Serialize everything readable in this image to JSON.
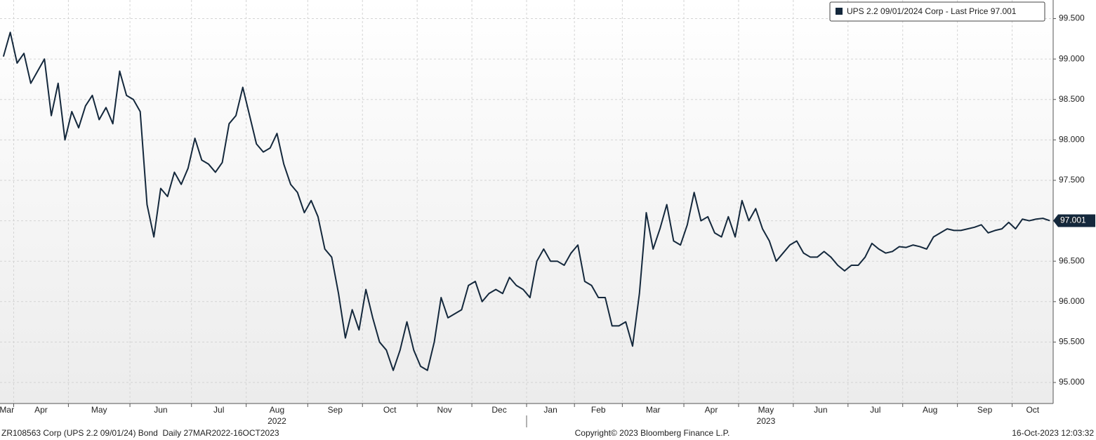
{
  "chart_data": {
    "type": "line",
    "series": [
      {
        "name": "UPS 2.2 09/01/2024 Corp - Last Price 97.001",
        "color": "#14283c",
        "values": [
          99.03,
          99.33,
          98.95,
          99.07,
          98.7,
          98.85,
          99.0,
          98.3,
          98.7,
          98.0,
          98.35,
          98.15,
          98.42,
          98.55,
          98.25,
          98.4,
          98.2,
          98.85,
          98.55,
          98.5,
          98.35,
          97.2,
          96.8,
          97.4,
          97.3,
          97.6,
          97.45,
          97.65,
          98.02,
          97.75,
          97.7,
          97.6,
          97.72,
          98.2,
          98.3,
          98.65,
          98.3,
          97.95,
          97.85,
          97.9,
          98.08,
          97.7,
          97.45,
          97.35,
          97.1,
          97.25,
          97.05,
          96.65,
          96.55,
          96.1,
          95.55,
          95.9,
          95.65,
          96.15,
          95.8,
          95.5,
          95.4,
          95.15,
          95.4,
          95.75,
          95.4,
          95.2,
          95.15,
          95.5,
          96.05,
          95.8,
          95.85,
          95.9,
          96.2,
          96.25,
          96.0,
          96.1,
          96.15,
          96.1,
          96.3,
          96.2,
          96.15,
          96.05,
          96.5,
          96.65,
          96.5,
          96.5,
          96.45,
          96.6,
          96.7,
          96.25,
          96.2,
          96.05,
          96.05,
          95.7,
          95.7,
          95.75,
          95.45,
          96.1,
          97.1,
          96.65,
          96.9,
          97.2,
          96.75,
          96.7,
          96.95,
          97.35,
          97.0,
          97.05,
          96.85,
          96.8,
          97.05,
          96.8,
          97.25,
          97.0,
          97.15,
          96.9,
          96.75,
          96.5,
          96.6,
          96.7,
          96.75,
          96.6,
          96.55,
          96.55,
          96.62,
          96.55,
          96.45,
          96.38,
          96.45,
          96.45,
          96.55,
          96.72,
          96.65,
          96.6,
          96.62,
          96.68,
          96.67,
          96.7,
          96.68,
          96.65,
          96.8,
          96.85,
          96.9,
          96.88,
          96.88,
          96.9,
          96.92,
          96.95,
          96.85,
          96.88,
          96.9,
          96.98,
          96.9,
          97.02,
          97.0,
          97.02,
          97.03,
          97.001
        ]
      }
    ],
    "x": [
      "2022-03",
      "2022-03",
      "2022-04",
      "2022-04",
      "2022-04",
      "2022-04",
      "2022-04",
      "2022-04",
      "2022-04",
      "2022-04",
      "2022-05",
      "2022-05",
      "2022-05",
      "2022-05",
      "2022-05",
      "2022-05",
      "2022-05",
      "2022-05",
      "2022-05",
      "2022-06",
      "2022-06",
      "2022-06",
      "2022-06",
      "2022-06",
      "2022-06",
      "2022-06",
      "2022-06",
      "2022-06",
      "2022-07",
      "2022-07",
      "2022-07",
      "2022-07",
      "2022-07",
      "2022-07",
      "2022-07",
      "2022-07",
      "2022-08",
      "2022-08",
      "2022-08",
      "2022-08",
      "2022-08",
      "2022-08",
      "2022-08",
      "2022-08",
      "2022-08",
      "2022-09",
      "2022-09",
      "2022-09",
      "2022-09",
      "2022-09",
      "2022-09",
      "2022-09",
      "2022-09",
      "2022-10",
      "2022-10",
      "2022-10",
      "2022-10",
      "2022-10",
      "2022-10",
      "2022-10",
      "2022-10",
      "2022-11",
      "2022-11",
      "2022-11",
      "2022-11",
      "2022-11",
      "2022-11",
      "2022-11",
      "2022-11",
      "2022-12",
      "2022-12",
      "2022-12",
      "2022-12",
      "2022-12",
      "2022-12",
      "2022-12",
      "2022-12",
      "2023-01",
      "2023-01",
      "2023-01",
      "2023-01",
      "2023-01",
      "2023-01",
      "2023-01",
      "2023-02",
      "2023-02",
      "2023-02",
      "2023-02",
      "2023-02",
      "2023-02",
      "2023-02",
      "2023-03",
      "2023-03",
      "2023-03",
      "2023-03",
      "2023-03",
      "2023-03",
      "2023-03",
      "2023-03",
      "2023-03",
      "2023-04",
      "2023-04",
      "2023-04",
      "2023-04",
      "2023-04",
      "2023-04",
      "2023-04",
      "2023-04",
      "2023-05",
      "2023-05",
      "2023-05",
      "2023-05",
      "2023-05",
      "2023-05",
      "2023-05",
      "2023-05",
      "2023-06",
      "2023-06",
      "2023-06",
      "2023-06",
      "2023-06",
      "2023-06",
      "2023-06",
      "2023-06",
      "2023-07",
      "2023-07",
      "2023-07",
      "2023-07",
      "2023-07",
      "2023-07",
      "2023-07",
      "2023-07",
      "2023-08",
      "2023-08",
      "2023-08",
      "2023-08",
      "2023-08",
      "2023-08",
      "2023-08",
      "2023-08",
      "2023-09",
      "2023-09",
      "2023-09",
      "2023-09",
      "2023-09",
      "2023-09",
      "2023-09",
      "2023-09",
      "2023-10",
      "2023-10",
      "2023-10",
      "2023-10",
      "2023-10",
      "2023-10"
    ],
    "xticks": [
      {
        "value": "2022-03",
        "label": "Mar"
      },
      {
        "value": "2022-04",
        "label": "Apr"
      },
      {
        "value": "2022-05",
        "label": "May"
      },
      {
        "value": "2022-06",
        "label": "Jun"
      },
      {
        "value": "2022-07",
        "label": "Jul"
      },
      {
        "value": "2022-08",
        "label": "Aug"
      },
      {
        "value": "2022-09",
        "label": "Sep"
      },
      {
        "value": "2022-10",
        "label": "Oct"
      },
      {
        "value": "2022-11",
        "label": "Nov"
      },
      {
        "value": "2022-12",
        "label": "Dec"
      },
      {
        "value": "2023-01",
        "label": "Jan"
      },
      {
        "value": "2023-02",
        "label": "Feb"
      },
      {
        "value": "2023-03",
        "label": "Mar"
      },
      {
        "value": "2023-04",
        "label": "Apr"
      },
      {
        "value": "2023-05",
        "label": "May"
      },
      {
        "value": "2023-06",
        "label": "Jun"
      },
      {
        "value": "2023-07",
        "label": "Jul"
      },
      {
        "value": "2023-08",
        "label": "Aug"
      },
      {
        "value": "2023-09",
        "label": "Sep"
      },
      {
        "value": "2023-10",
        "label": "Oct"
      }
    ],
    "year_ticks": [
      {
        "value": "2022-08",
        "label": "2022"
      },
      {
        "value": "2023-05",
        "label": "2023"
      }
    ],
    "ylim": [
      94.74,
      99.73
    ],
    "yticks": [
      {
        "value": 95,
        "label": "95.000"
      },
      {
        "value": 95.5,
        "label": "95.500"
      },
      {
        "value": 96,
        "label": "96.000"
      },
      {
        "value": 96.5,
        "label": "96.500"
      },
      {
        "value": 97,
        "label": "97.000"
      },
      {
        "value": 97.5,
        "label": "97.500"
      },
      {
        "value": 98,
        "label": "98.000"
      },
      {
        "value": 98.5,
        "label": "98.500"
      },
      {
        "value": 99,
        "label": "99.000"
      },
      {
        "value": 99.5,
        "label": "99.500"
      }
    ],
    "grid": true,
    "legend": "top-right",
    "footer": {
      "left": "ZR108563 Corp (UPS 2.2 09/01/24) Bond  Daily 27MAR2022-16OCT2023",
      "center": "Copyright© 2023 Bloomberg Finance L.P.",
      "right": "16-Oct-2023 12:03:32"
    }
  }
}
